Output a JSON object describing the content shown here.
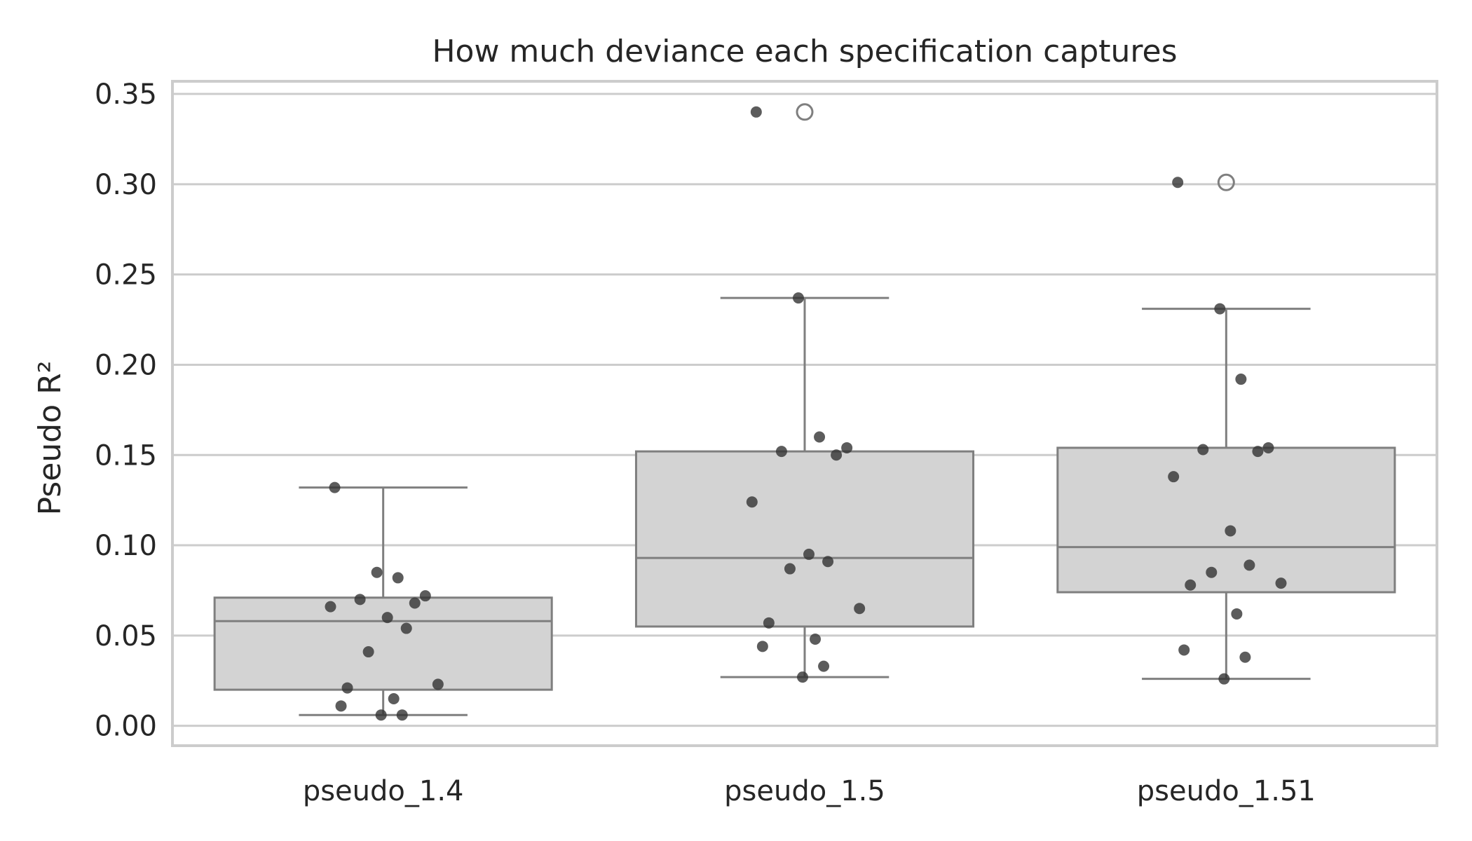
{
  "chart_data": {
    "type": "box",
    "title": "How much deviance each specification captures",
    "xlabel": "",
    "ylabel": "Pseudo R²",
    "ylim": [
      -0.011,
      0.357
    ],
    "yticks": [
      "0.00",
      "0.05",
      "0.10",
      "0.15",
      "0.20",
      "0.25",
      "0.30",
      "0.35"
    ],
    "grid": true,
    "categories": [
      "pseudo_1.4",
      "pseudo_1.5",
      "pseudo_1.51"
    ],
    "boxes": [
      {
        "whisker_low": 0.006,
        "q1": 0.02,
        "median": 0.058,
        "q3": 0.071,
        "whisker_high": 0.132,
        "outliers": []
      },
      {
        "whisker_low": 0.027,
        "q1": 0.055,
        "median": 0.093,
        "q3": 0.152,
        "whisker_high": 0.237,
        "outliers": [
          0.34
        ]
      },
      {
        "whisker_low": 0.026,
        "q1": 0.074,
        "median": 0.099,
        "q3": 0.154,
        "whisker_high": 0.231,
        "outliers": [
          0.301
        ]
      }
    ],
    "points": [
      [
        0.132,
        0.085,
        0.082,
        0.072,
        0.07,
        0.068,
        0.066,
        0.06,
        0.054,
        0.041,
        0.023,
        0.021,
        0.015,
        0.011,
        0.006,
        0.006
      ],
      [
        0.34,
        0.237,
        0.16,
        0.154,
        0.152,
        0.15,
        0.124,
        0.095,
        0.091,
        0.087,
        0.065,
        0.057,
        0.048,
        0.044,
        0.033,
        0.027
      ],
      [
        0.301,
        0.231,
        0.192,
        0.154,
        0.153,
        0.152,
        0.138,
        0.108,
        0.089,
        0.085,
        0.079,
        0.078,
        0.062,
        0.042,
        0.038,
        0.026
      ]
    ],
    "colors": {
      "box_fill": "#d3d3d3",
      "box_edge": "#7f7f7f",
      "points": "#333333",
      "grid": "#cccccc"
    }
  }
}
